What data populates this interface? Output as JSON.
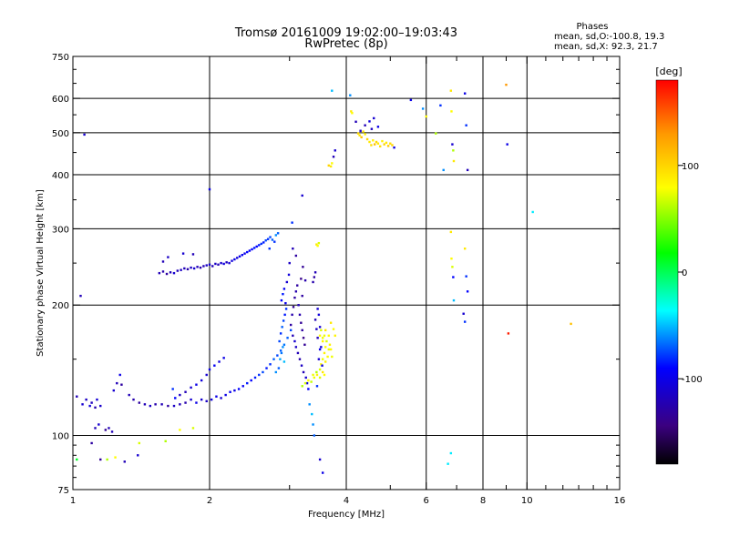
{
  "chart_data": {
    "type": "scatter",
    "title": "Tromsø 20161009 19:02:00–19:03:43",
    "subtitle": "RwPretec (8p)",
    "stats": {
      "heading": "Phases",
      "line1": "mean, sd,O:-100.8, 19.3",
      "line2": "mean, sd,X: 92.3, 21.7"
    },
    "xlabel": "Frequency [MHz]",
    "ylabel": "Stationary phase Virtual Height [km]",
    "x_scale": "log",
    "y_scale": "log",
    "xlim": [
      1,
      16
    ],
    "ylim": [
      75,
      750
    ],
    "x_ticks": [
      1,
      2,
      4,
      6,
      8,
      10,
      16
    ],
    "x_tick_labels": [
      "1",
      "2",
      "4",
      "6",
      "8",
      "10",
      "16"
    ],
    "x_minor_ticks": [
      3,
      5,
      7,
      9,
      11,
      12,
      13,
      14,
      15
    ],
    "y_ticks": [
      75,
      100,
      200,
      300,
      400,
      500,
      600,
      750
    ],
    "y_tick_labels": [
      "75",
      "100",
      "200",
      "300",
      "400",
      "500",
      "600",
      "750"
    ],
    "grid": true,
    "colorbar": {
      "label": "[deg]",
      "range": [
        -180,
        180
      ],
      "ticks": [
        100,
        0,
        -100
      ],
      "tick_labels": [
        "100",
        "0",
        "-100"
      ],
      "colormap": "rainbow"
    },
    "points": [
      [
        1.02,
        123,
        -120
      ],
      [
        1.05,
        118,
        -110
      ],
      [
        1.07,
        121,
        -115
      ],
      [
        1.09,
        117,
        -105
      ],
      [
        1.1,
        119,
        -118
      ],
      [
        1.12,
        116,
        -125
      ],
      [
        1.13,
        121,
        -108
      ],
      [
        1.15,
        117,
        -112
      ],
      [
        1.02,
        88,
        10
      ],
      [
        1.1,
        96,
        -130
      ],
      [
        1.12,
        104,
        -120
      ],
      [
        1.14,
        106,
        -110
      ],
      [
        1.18,
        103,
        -135
      ],
      [
        1.2,
        104,
        -120
      ],
      [
        1.23,
        127,
        -110
      ],
      [
        1.25,
        132,
        -120
      ],
      [
        1.27,
        138,
        -100
      ],
      [
        1.28,
        131,
        -130
      ],
      [
        1.22,
        102,
        -120
      ],
      [
        1.06,
        495,
        -110
      ],
      [
        1.04,
        210,
        -120
      ],
      [
        1.15,
        88,
        -135
      ],
      [
        1.3,
        87,
        -120
      ],
      [
        1.39,
        90,
        -110
      ],
      [
        1.19,
        88,
        60
      ],
      [
        1.24,
        89,
        80
      ],
      [
        1.4,
        96,
        70
      ],
      [
        1.6,
        97,
        60
      ],
      [
        1.72,
        103,
        80
      ],
      [
        1.84,
        104,
        70
      ],
      [
        1.33,
        124,
        -120
      ],
      [
        1.36,
        121,
        -125
      ],
      [
        1.4,
        119,
        -130
      ],
      [
        1.44,
        118,
        -120
      ],
      [
        1.48,
        117,
        -115
      ],
      [
        1.52,
        118,
        -125
      ],
      [
        1.57,
        118,
        -120
      ],
      [
        1.62,
        117,
        -130
      ],
      [
        1.67,
        117,
        -115
      ],
      [
        1.72,
        118,
        -120
      ],
      [
        1.77,
        119,
        -125
      ],
      [
        1.82,
        121,
        -110
      ],
      [
        1.87,
        119,
        -100
      ],
      [
        1.92,
        121,
        -110
      ],
      [
        1.97,
        120,
        -115
      ],
      [
        2.02,
        121,
        -105
      ],
      [
        2.07,
        123,
        -100
      ],
      [
        2.12,
        122,
        -110
      ],
      [
        2.17,
        124,
        -100
      ],
      [
        2.22,
        126,
        -95
      ],
      [
        2.27,
        127,
        -100
      ],
      [
        2.32,
        128,
        -90
      ],
      [
        2.37,
        130,
        -95
      ],
      [
        2.42,
        132,
        -85
      ],
      [
        2.47,
        134,
        -90
      ],
      [
        2.52,
        136,
        -85
      ],
      [
        2.57,
        138,
        -80
      ],
      [
        2.62,
        140,
        -75
      ],
      [
        2.67,
        143,
        -85
      ],
      [
        2.72,
        146,
        -80
      ],
      [
        2.77,
        150,
        -70
      ],
      [
        2.82,
        153,
        -75
      ],
      [
        2.87,
        157,
        -70
      ],
      [
        2.92,
        162,
        -65
      ],
      [
        2.97,
        168,
        -70
      ],
      [
        3.02,
        175,
        -75
      ],
      [
        1.72,
        124,
        -115
      ],
      [
        1.77,
        126,
        -120
      ],
      [
        1.82,
        129,
        -110
      ],
      [
        1.87,
        131,
        -100
      ],
      [
        1.92,
        134,
        -105
      ],
      [
        1.97,
        138,
        -110
      ],
      [
        2.0,
        142,
        -100
      ],
      [
        2.05,
        145,
        -95
      ],
      [
        2.1,
        148,
        -105
      ],
      [
        2.15,
        151,
        -100
      ],
      [
        1.66,
        128,
        -80
      ],
      [
        1.68,
        122,
        -90
      ],
      [
        2.8,
        140,
        -60
      ],
      [
        2.84,
        143,
        -70
      ],
      [
        2.86,
        150,
        -55
      ],
      [
        2.88,
        155,
        -65
      ],
      [
        2.9,
        160,
        -60
      ],
      [
        2.92,
        148,
        -50
      ],
      [
        2.85,
        165,
        -75
      ],
      [
        2.87,
        172,
        -80
      ],
      [
        2.89,
        178,
        -70
      ],
      [
        2.91,
        184,
        -75
      ],
      [
        2.93,
        190,
        -85
      ],
      [
        2.95,
        196,
        -80
      ],
      [
        2.88,
        205,
        -90
      ],
      [
        2.9,
        212,
        -85
      ],
      [
        2.92,
        218,
        -95
      ],
      [
        2.94,
        202,
        -100
      ],
      [
        2.96,
        226,
        -110
      ],
      [
        2.99,
        235,
        -105
      ],
      [
        3.02,
        180,
        -130
      ],
      [
        3.04,
        190,
        -125
      ],
      [
        3.06,
        198,
        -135
      ],
      [
        3.08,
        208,
        -130
      ],
      [
        3.1,
        215,
        -125
      ],
      [
        3.12,
        222,
        -130
      ],
      [
        3.14,
        200,
        -120
      ],
      [
        3.16,
        190,
        -125
      ],
      [
        3.18,
        182,
        -135
      ],
      [
        3.2,
        175,
        -130
      ],
      [
        3.22,
        168,
        -140
      ],
      [
        3.24,
        162,
        -135
      ],
      [
        3.05,
        170,
        -120
      ],
      [
        3.08,
        165,
        -110
      ],
      [
        3.1,
        160,
        -115
      ],
      [
        3.13,
        155,
        -120
      ],
      [
        3.16,
        150,
        -125
      ],
      [
        3.19,
        145,
        -115
      ],
      [
        3.22,
        140,
        -120
      ],
      [
        3.26,
        136,
        -110
      ],
      [
        3.28,
        132,
        -100
      ],
      [
        3.3,
        128,
        -90
      ],
      [
        3.18,
        230,
        -140
      ],
      [
        3.21,
        245,
        -135
      ],
      [
        3.1,
        260,
        -130
      ],
      [
        3.05,
        270,
        -120
      ],
      [
        3.25,
        228,
        -125
      ],
      [
        3.2,
        210,
        -130
      ],
      [
        3.0,
        250,
        -115
      ],
      [
        3.2,
        130,
        60
      ],
      [
        3.25,
        132,
        70
      ],
      [
        3.3,
        134,
        80
      ],
      [
        3.35,
        133,
        65
      ],
      [
        3.4,
        136,
        75
      ],
      [
        3.45,
        138,
        85
      ],
      [
        3.5,
        142,
        70
      ],
      [
        3.52,
        146,
        80
      ],
      [
        3.55,
        150,
        75
      ],
      [
        3.58,
        155,
        85
      ],
      [
        3.6,
        160,
        80
      ],
      [
        3.62,
        165,
        70
      ],
      [
        3.58,
        170,
        75
      ],
      [
        3.55,
        165,
        85
      ],
      [
        3.5,
        170,
        80
      ],
      [
        3.52,
        175,
        70
      ],
      [
        3.55,
        168,
        75
      ],
      [
        3.6,
        148,
        85
      ],
      [
        3.64,
        152,
        80
      ],
      [
        3.66,
        158,
        75
      ],
      [
        3.68,
        162,
        85
      ],
      [
        3.7,
        158,
        80
      ],
      [
        3.72,
        152,
        75
      ],
      [
        3.55,
        140,
        90
      ],
      [
        3.58,
        138,
        80
      ],
      [
        3.5,
        136,
        70
      ],
      [
        3.44,
        140,
        60
      ],
      [
        3.38,
        138,
        75
      ],
      [
        3.6,
        175,
        90
      ],
      [
        3.66,
        170,
        80
      ],
      [
        3.48,
        150,
        -110
      ],
      [
        3.5,
        158,
        -100
      ],
      [
        3.46,
        168,
        -120
      ],
      [
        3.44,
        176,
        -115
      ],
      [
        3.42,
        185,
        -120
      ],
      [
        3.5,
        178,
        -110
      ],
      [
        3.48,
        190,
        -105
      ],
      [
        3.46,
        196,
        -110
      ],
      [
        3.52,
        160,
        -105
      ],
      [
        3.54,
        145,
        -100
      ],
      [
        3.45,
        130,
        -80
      ],
      [
        3.4,
        232,
        -130
      ],
      [
        3.42,
        238,
        -120
      ],
      [
        3.38,
        226,
        -125
      ],
      [
        3.44,
        276,
        90
      ],
      [
        3.46,
        274,
        80
      ],
      [
        3.48,
        278,
        70
      ],
      [
        3.32,
        118,
        -60
      ],
      [
        3.36,
        112,
        -50
      ],
      [
        3.38,
        106,
        -60
      ],
      [
        3.4,
        100,
        -70
      ],
      [
        3.5,
        88,
        -110
      ],
      [
        3.55,
        82,
        -100
      ],
      [
        3.75,
        176,
        80
      ],
      [
        3.78,
        170,
        85
      ],
      [
        3.7,
        182,
        90
      ],
      [
        1.55,
        237,
        -120
      ],
      [
        1.58,
        239,
        -125
      ],
      [
        1.61,
        236,
        -130
      ],
      [
        1.64,
        238,
        -120
      ],
      [
        1.67,
        237,
        -110
      ],
      [
        1.7,
        240,
        -120
      ],
      [
        1.73,
        241,
        -115
      ],
      [
        1.76,
        243,
        -120
      ],
      [
        1.79,
        242,
        -125
      ],
      [
        1.82,
        244,
        -115
      ],
      [
        1.85,
        243,
        -110
      ],
      [
        1.88,
        245,
        -120
      ],
      [
        1.91,
        244,
        -125
      ],
      [
        1.94,
        246,
        -120
      ],
      [
        1.97,
        247,
        -115
      ],
      [
        2.0,
        248,
        -110
      ],
      [
        2.03,
        246,
        -120
      ],
      [
        2.06,
        249,
        -115
      ],
      [
        2.09,
        248,
        -120
      ],
      [
        2.12,
        250,
        -110
      ],
      [
        2.15,
        249,
        -105
      ],
      [
        2.18,
        251,
        -115
      ],
      [
        2.21,
        250,
        -110
      ],
      [
        2.24,
        253,
        -105
      ],
      [
        2.27,
        255,
        -100
      ],
      [
        2.3,
        257,
        -105
      ],
      [
        2.33,
        259,
        -100
      ],
      [
        2.36,
        261,
        -95
      ],
      [
        2.39,
        263,
        -100
      ],
      [
        2.42,
        265,
        -90
      ],
      [
        2.45,
        267,
        -95
      ],
      [
        2.48,
        269,
        -90
      ],
      [
        2.51,
        271,
        -85
      ],
      [
        2.54,
        273,
        -90
      ],
      [
        2.57,
        275,
        -85
      ],
      [
        2.6,
        277,
        -80
      ],
      [
        2.63,
        279,
        -85
      ],
      [
        2.66,
        282,
        -75
      ],
      [
        2.69,
        284,
        -80
      ],
      [
        2.72,
        287,
        -75
      ],
      [
        2.75,
        283,
        -70
      ],
      [
        2.78,
        280,
        -80
      ],
      [
        1.58,
        252,
        -120
      ],
      [
        1.62,
        258,
        -115
      ],
      [
        1.75,
        263,
        -110
      ],
      [
        1.84,
        262,
        -120
      ],
      [
        2.8,
        290,
        -60
      ],
      [
        2.83,
        293,
        -70
      ],
      [
        2.71,
        270,
        -80
      ],
      [
        3.2,
        358,
        -110
      ],
      [
        3.04,
        310,
        -80
      ],
      [
        2.0,
        370,
        -100
      ],
      [
        3.66,
        420,
        100
      ],
      [
        3.7,
        418,
        90
      ],
      [
        3.72,
        425,
        80
      ],
      [
        3.75,
        440,
        -120
      ],
      [
        3.78,
        455,
        -110
      ],
      [
        3.72,
        625,
        -50
      ],
      [
        4.08,
        610,
        -60
      ],
      [
        4.1,
        560,
        90
      ],
      [
        4.12,
        555,
        80
      ],
      [
        4.2,
        530,
        -120
      ],
      [
        4.25,
        498,
        100
      ],
      [
        4.28,
        493,
        90
      ],
      [
        4.32,
        488,
        110
      ],
      [
        4.36,
        503,
        95
      ],
      [
        4.4,
        496,
        85
      ],
      [
        4.45,
        483,
        100
      ],
      [
        4.5,
        476,
        90
      ],
      [
        4.54,
        468,
        95
      ],
      [
        4.58,
        480,
        85
      ],
      [
        4.62,
        470,
        110
      ],
      [
        4.66,
        476,
        100
      ],
      [
        4.7,
        472,
        90
      ],
      [
        4.75,
        465,
        95
      ],
      [
        4.8,
        478,
        85
      ],
      [
        4.85,
        470,
        100
      ],
      [
        4.9,
        474,
        90
      ],
      [
        4.95,
        466,
        105
      ],
      [
        5.0,
        472,
        95
      ],
      [
        5.05,
        468,
        100
      ],
      [
        5.1,
        462,
        -100
      ],
      [
        4.6,
        540,
        -110
      ],
      [
        4.5,
        531,
        -105
      ],
      [
        4.4,
        520,
        -120
      ],
      [
        4.7,
        516,
        -100
      ],
      [
        4.3,
        505,
        -110
      ],
      [
        4.55,
        510,
        -115
      ],
      [
        5.55,
        595,
        -100
      ],
      [
        5.9,
        568,
        -60
      ],
      [
        6.0,
        545,
        80
      ],
      [
        6.3,
        498,
        60
      ],
      [
        6.45,
        578,
        -80
      ],
      [
        6.55,
        410,
        -60
      ],
      [
        6.8,
        625,
        90
      ],
      [
        6.82,
        560,
        80
      ],
      [
        6.85,
        470,
        -110
      ],
      [
        6.88,
        455,
        60
      ],
      [
        6.9,
        430,
        90
      ],
      [
        7.3,
        616,
        -100
      ],
      [
        7.35,
        520,
        -80
      ],
      [
        7.4,
        410,
        -120
      ],
      [
        6.8,
        295,
        90
      ],
      [
        6.82,
        256,
        80
      ],
      [
        6.85,
        245,
        70
      ],
      [
        6.88,
        232,
        -90
      ],
      [
        6.9,
        205,
        -50
      ],
      [
        7.3,
        270,
        90
      ],
      [
        7.35,
        233,
        -80
      ],
      [
        7.4,
        215,
        -90
      ],
      [
        7.25,
        191,
        -110
      ],
      [
        7.3,
        183,
        -80
      ],
      [
        6.8,
        91,
        -40
      ],
      [
        6.7,
        86,
        -40
      ],
      [
        9.0,
        645,
        130
      ],
      [
        9.05,
        470,
        -100
      ],
      [
        9.1,
        172,
        170
      ],
      [
        10.3,
        328,
        -40
      ],
      [
        12.5,
        181,
        110
      ]
    ]
  }
}
